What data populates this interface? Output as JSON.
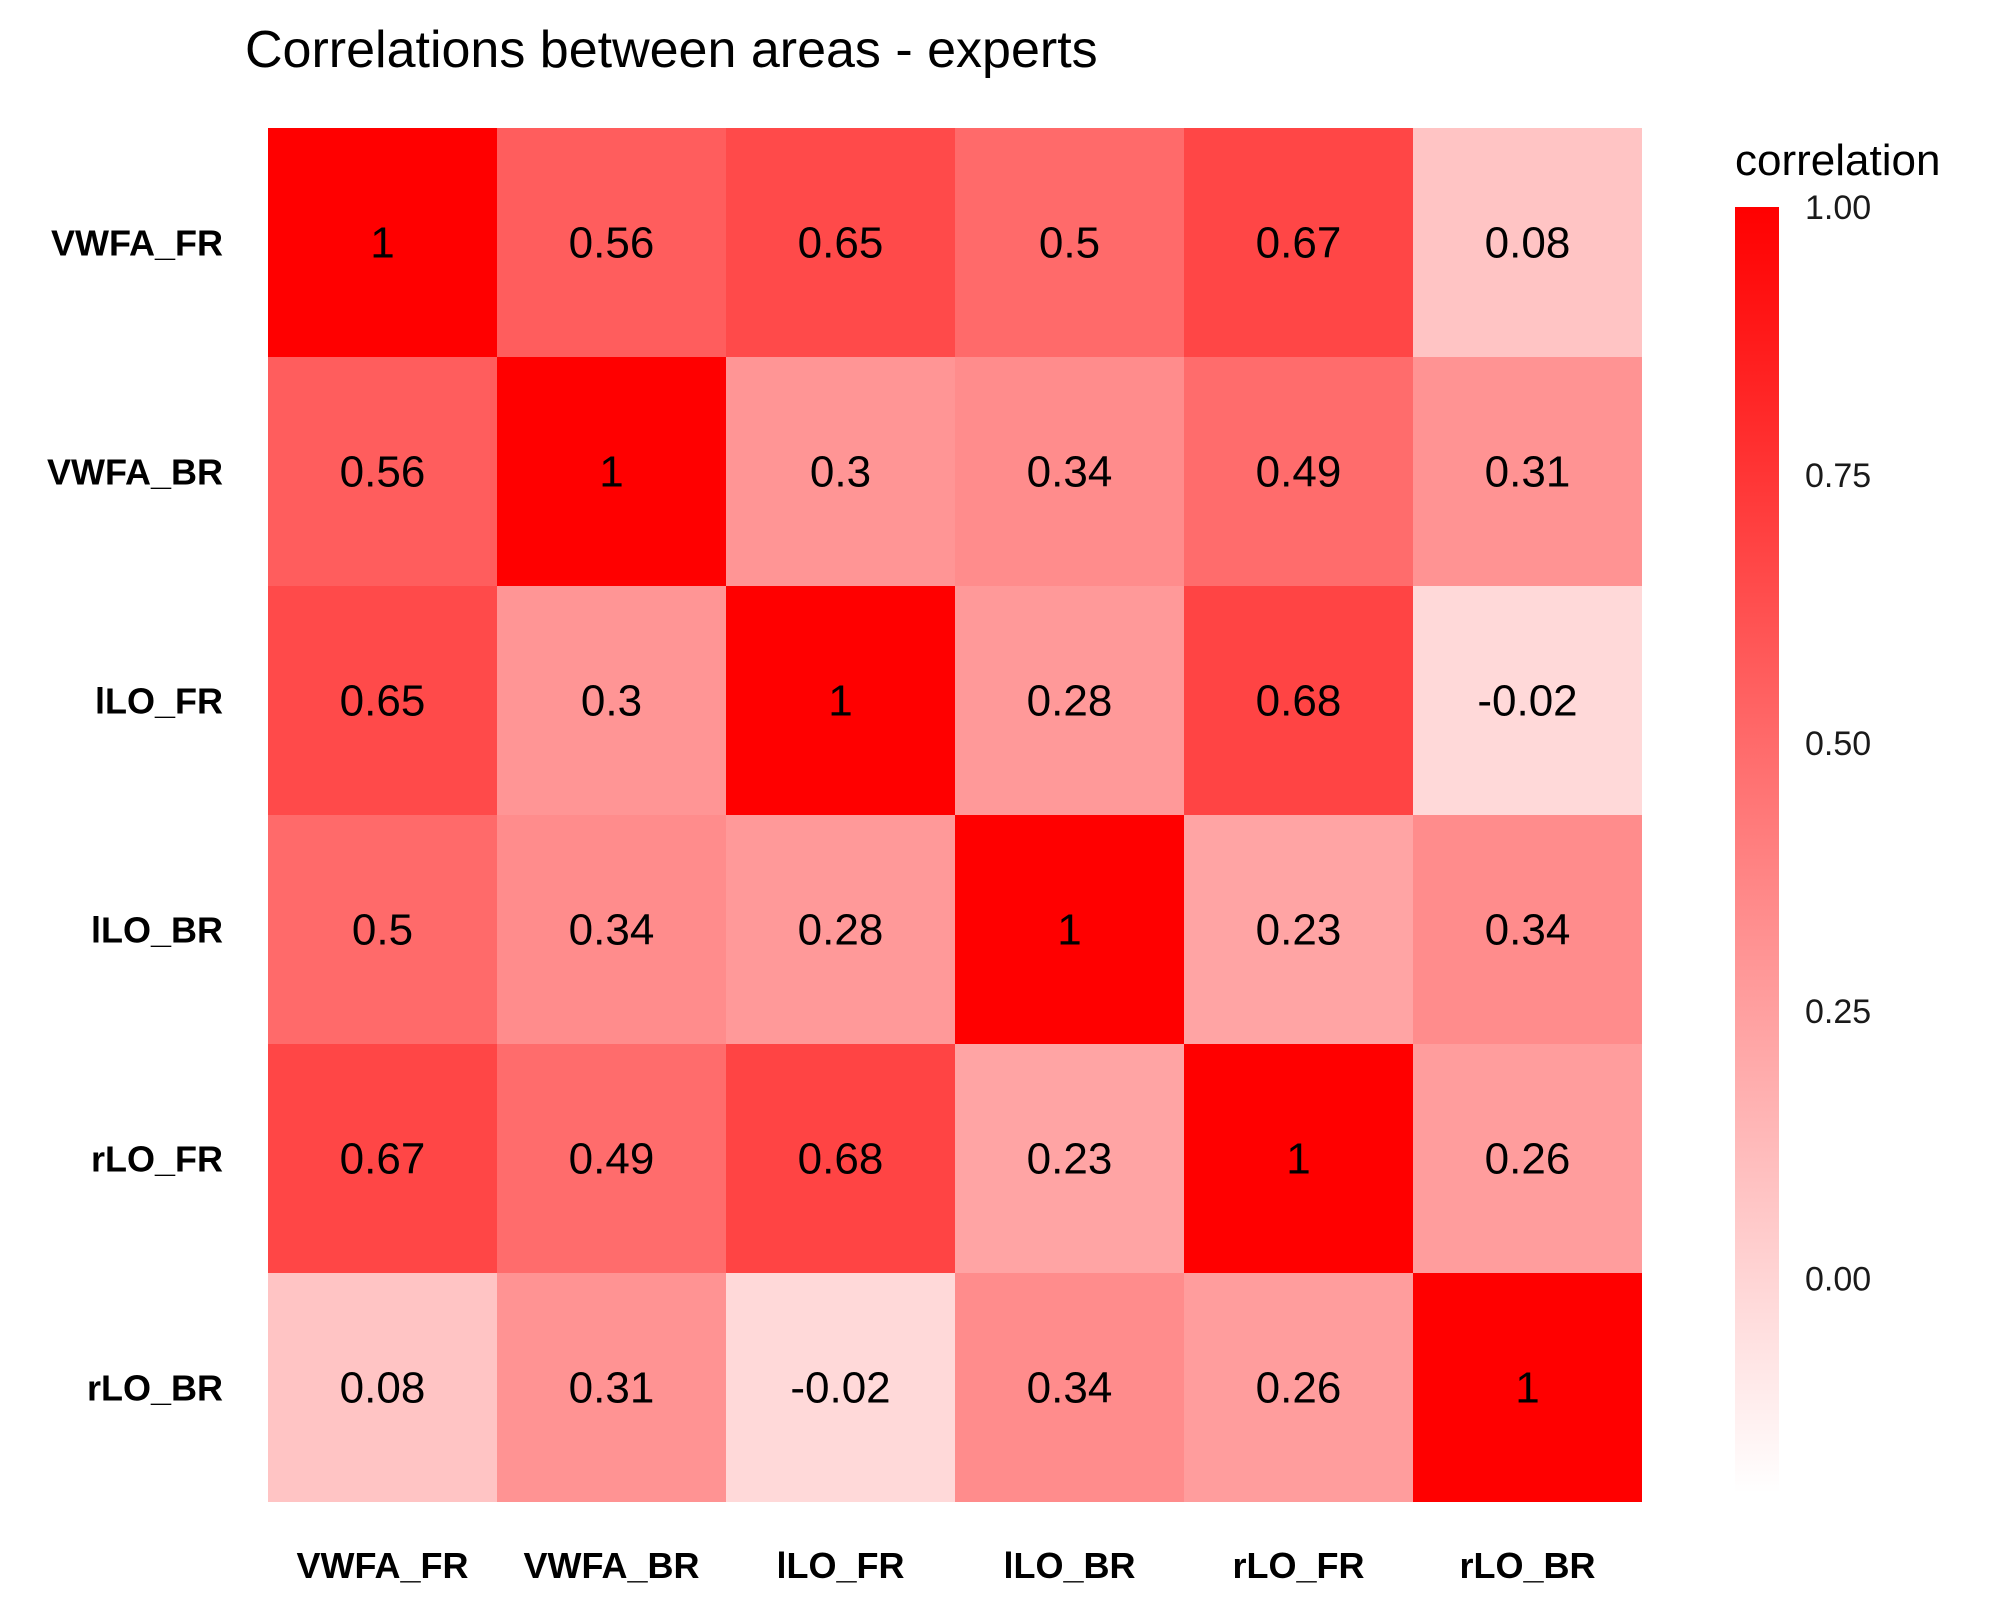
{
  "chart_data": {
    "type": "heatmap",
    "title": "Correlations between areas - experts",
    "xlabel": "",
    "ylabel": "",
    "x_categories": [
      "VWFA_FR",
      "VWFA_BR",
      "lLO_FR",
      "lLO_BR",
      "rLO_FR",
      "rLO_BR"
    ],
    "y_categories": [
      "VWFA_FR",
      "VWFA_BR",
      "lLO_FR",
      "lLO_BR",
      "rLO_FR",
      "rLO_BR"
    ],
    "values": [
      [
        1,
        0.56,
        0.65,
        0.5,
        0.67,
        0.08
      ],
      [
        0.56,
        1,
        0.3,
        0.34,
        0.49,
        0.31
      ],
      [
        0.65,
        0.3,
        1,
        0.28,
        0.68,
        -0.02
      ],
      [
        0.5,
        0.34,
        0.28,
        1,
        0.23,
        0.34
      ],
      [
        0.67,
        0.49,
        0.68,
        0.23,
        1,
        0.26
      ],
      [
        0.08,
        0.31,
        -0.02,
        0.34,
        0.26,
        1
      ]
    ],
    "value_labels": [
      [
        "1",
        "0.56",
        "0.65",
        "0.5",
        "0.67",
        "0.08"
      ],
      [
        "0.56",
        "1",
        "0.3",
        "0.34",
        "0.49",
        "0.31"
      ],
      [
        "0.65",
        "0.3",
        "1",
        "0.28",
        "0.68",
        "-0.02"
      ],
      [
        "0.5",
        "0.34",
        "0.28",
        "1",
        "0.23",
        "0.34"
      ],
      [
        "0.67",
        "0.49",
        "0.68",
        "0.23",
        "1",
        "0.26"
      ],
      [
        "0.08",
        "0.31",
        "-0.02",
        "0.34",
        "0.26",
        "1"
      ]
    ],
    "legend": {
      "title": "correlation",
      "ticks": [
        1.0,
        0.75,
        0.5,
        0.25,
        0.0
      ],
      "tick_labels": [
        "1.00",
        "0.75",
        "0.50",
        "0.25",
        "0.00"
      ],
      "range": [
        -0.2,
        1.0
      ],
      "placement": "right"
    },
    "colors": {
      "low": "#ffffff",
      "high": "#ff0000"
    },
    "grid": false
  }
}
